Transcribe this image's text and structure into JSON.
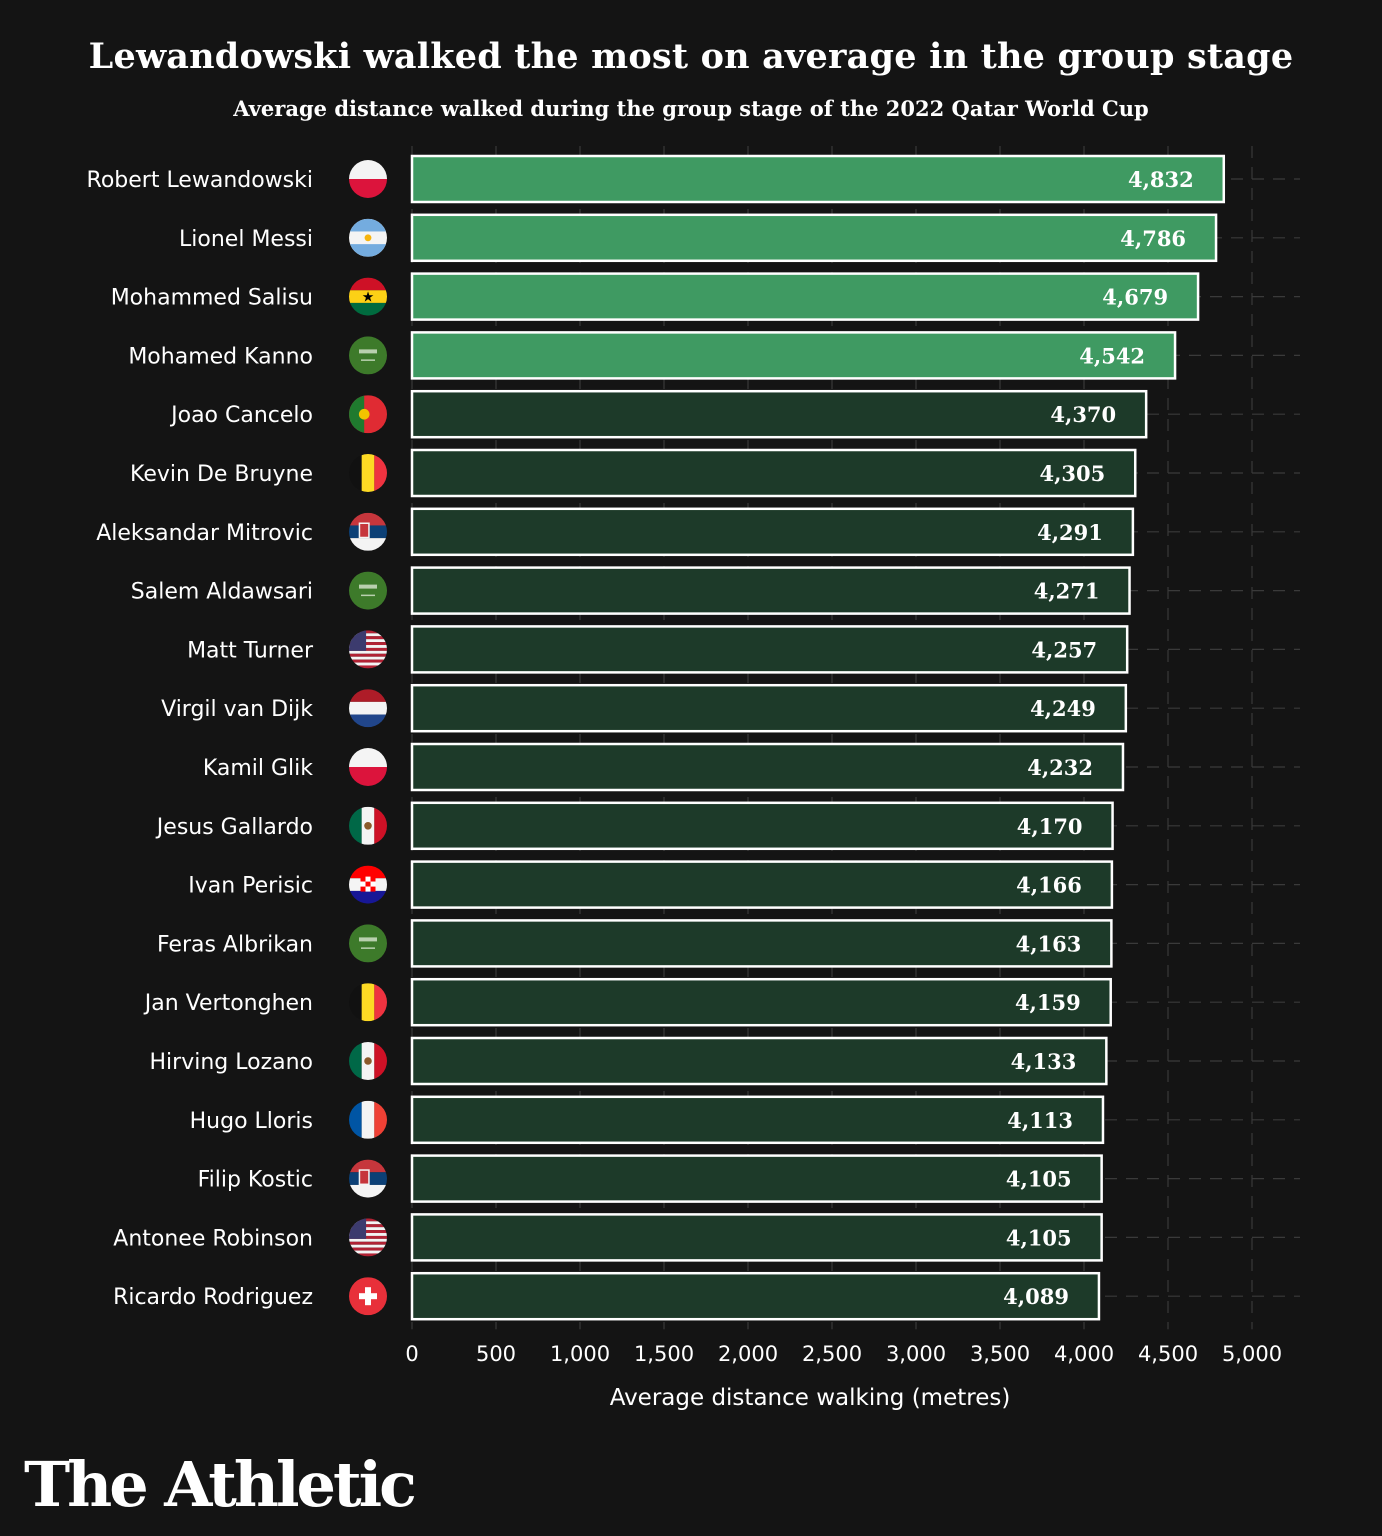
{
  "chart_data": {
    "type": "bar",
    "orientation": "horizontal",
    "title": "Lewandowski walked the most on average in the group stage",
    "subtitle": "Average distance walked during the group stage of the 2022 Qatar World Cup",
    "xlabel": "Average distance walking (metres)",
    "ylabel": "",
    "xlim": [
      0,
      5000
    ],
    "xticks": [
      0,
      500,
      1000,
      1500,
      2000,
      2500,
      3000,
      3500,
      4000,
      4500,
      5000
    ],
    "xtick_labels": [
      "0",
      "500",
      "1,000",
      "1,500",
      "2,000",
      "2,500",
      "3,000",
      "3,500",
      "4,000",
      "4,500",
      "5,000"
    ],
    "grid": true,
    "categories": [
      "Robert Lewandowski",
      "Lionel Messi",
      "Mohammed Salisu",
      "Mohamed Kanno",
      "Joao Cancelo",
      "Kevin De Bruyne",
      "Aleksandar Mitrovic",
      "Salem Aldawsari",
      "Matt Turner",
      "Virgil van Dijk",
      "Kamil Glik",
      "Jesus Gallardo",
      "Ivan Perisic",
      "Feras Albrikan",
      "Jan Vertonghen",
      "Hirving Lozano",
      "Hugo Lloris",
      "Filip Kostic",
      "Antonee Robinson",
      "Ricardo Rodriguez"
    ],
    "countries": [
      "poland",
      "argentina",
      "ghana",
      "saudi-arabia",
      "portugal",
      "belgium",
      "serbia",
      "saudi-arabia",
      "usa",
      "netherlands",
      "poland",
      "mexico",
      "croatia",
      "saudi-arabia",
      "belgium",
      "mexico",
      "france",
      "serbia",
      "usa",
      "switzerland"
    ],
    "values": [
      4832,
      4786,
      4679,
      4542,
      4370,
      4305,
      4291,
      4271,
      4257,
      4249,
      4232,
      4170,
      4166,
      4163,
      4159,
      4133,
      4113,
      4105,
      4105,
      4089
    ],
    "value_labels": [
      "4,832",
      "4,786",
      "4,679",
      "4,542",
      "4,370",
      "4,305",
      "4,291",
      "4,271",
      "4,257",
      "4,249",
      "4,232",
      "4,170",
      "4,166",
      "4,163",
      "4,159",
      "4,133",
      "4,113",
      "4,105",
      "4,105",
      "4,089"
    ],
    "highlighted_count": 4,
    "colors": {
      "highlight_fill": "#3f9a62",
      "default_fill": "#1d3a29",
      "bar_border": "#ffffff",
      "grid": "#3a3a3a",
      "background": "#141414"
    }
  },
  "brand": "The Athletic"
}
